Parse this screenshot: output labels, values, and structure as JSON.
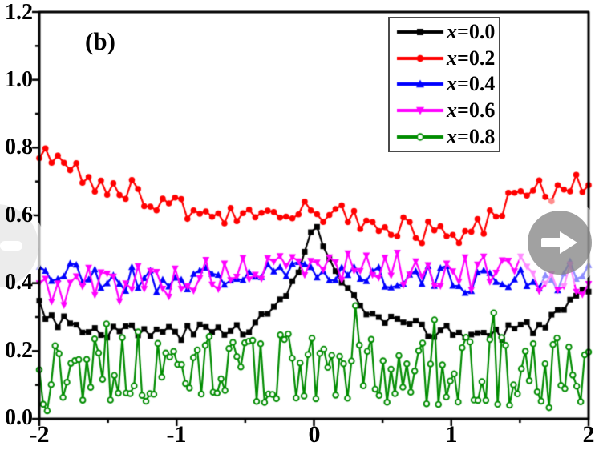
{
  "panel_label": "(b)",
  "ui": {
    "prev_icon": "arrow-left",
    "next_icon": "arrow-right"
  },
  "chart_data": {
    "type": "line",
    "title": "",
    "xlabel": "",
    "ylabel": "",
    "xlim": [
      -2,
      2
    ],
    "ylim": [
      0,
      1.2
    ],
    "xticks": [
      -2,
      -1,
      0,
      1,
      2
    ],
    "xticklabels": [
      "-2",
      "-1",
      "0",
      "1",
      "2"
    ],
    "xminor": [
      -1.5,
      -0.5,
      0.5,
      1.5
    ],
    "yticks": [
      0.0,
      0.2,
      0.4,
      0.6,
      0.8,
      1.0,
      1.2
    ],
    "yticklabels": [
      "0.0",
      "0.2",
      "0.4",
      "0.6",
      "0.8",
      "1.0",
      "1.2"
    ],
    "yminor": [
      0.1,
      0.3,
      0.5,
      0.7,
      0.9,
      1.1
    ],
    "grid": false,
    "frame": true,
    "legend_position": "top-right",
    "panel_label": "(b)",
    "series": [
      {
        "label": "x=0.0",
        "var": "x",
        "eq": "=0.0",
        "color": "#000000",
        "marker": "square",
        "n": 90,
        "seed": 3,
        "noise_center": 0.018,
        "noise_edge": 0.03,
        "spike": 0,
        "spike_prob": 0,
        "clip_min": 0.01,
        "trend": [
          [
            -2,
            0.335
          ],
          [
            -1.85,
            0.29
          ],
          [
            -1.6,
            0.265
          ],
          [
            -1.3,
            0.255
          ],
          [
            -1.0,
            0.255
          ],
          [
            -0.7,
            0.26
          ],
          [
            -0.5,
            0.27
          ],
          [
            -0.35,
            0.3
          ],
          [
            -0.2,
            0.36
          ],
          [
            -0.1,
            0.46
          ],
          [
            0,
            0.575
          ],
          [
            0.08,
            0.5
          ],
          [
            0.2,
            0.4
          ],
          [
            0.35,
            0.32
          ],
          [
            0.5,
            0.285
          ],
          [
            0.8,
            0.265
          ],
          [
            1.1,
            0.25
          ],
          [
            1.4,
            0.25
          ],
          [
            1.7,
            0.29
          ],
          [
            1.9,
            0.33
          ],
          [
            2,
            0.37
          ]
        ]
      },
      {
        "label": "x=0.2",
        "var": "x",
        "eq": "=0.2",
        "color": "#ff0000",
        "marker": "circle",
        "n": 90,
        "seed": 8,
        "noise_center": 0.028,
        "noise_edge": 0.045,
        "spike": 0,
        "spike_prob": 0,
        "clip_min": 0.01,
        "trend": [
          [
            -2,
            0.8
          ],
          [
            -1.85,
            0.755
          ],
          [
            -1.7,
            0.72
          ],
          [
            -1.5,
            0.695
          ],
          [
            -1.3,
            0.665
          ],
          [
            -1.1,
            0.645
          ],
          [
            -0.9,
            0.62
          ],
          [
            -0.7,
            0.605
          ],
          [
            -0.5,
            0.59
          ],
          [
            -0.3,
            0.6
          ],
          [
            -0.15,
            0.615
          ],
          [
            0,
            0.61
          ],
          [
            0.2,
            0.6
          ],
          [
            0.4,
            0.58
          ],
          [
            0.6,
            0.565
          ],
          [
            0.8,
            0.55
          ],
          [
            1.0,
            0.545
          ],
          [
            1.2,
            0.575
          ],
          [
            1.4,
            0.625
          ],
          [
            1.6,
            0.66
          ],
          [
            1.8,
            0.685
          ],
          [
            2,
            0.685
          ]
        ]
      },
      {
        "label": "x=0.4",
        "var": "x",
        "eq": "=0.4",
        "color": "#0000ff",
        "marker": "triangle-up",
        "n": 90,
        "seed": 21,
        "noise_center": 0.03,
        "noise_edge": 0.05,
        "spike": 0,
        "spike_prob": 0,
        "clip_min": 0.01,
        "trend": [
          [
            -2,
            0.455
          ],
          [
            -1.9,
            0.425
          ],
          [
            -1.6,
            0.415
          ],
          [
            -1.2,
            0.41
          ],
          [
            -0.8,
            0.415
          ],
          [
            -0.4,
            0.425
          ],
          [
            0,
            0.44
          ],
          [
            0.4,
            0.425
          ],
          [
            0.8,
            0.415
          ],
          [
            1.2,
            0.41
          ],
          [
            1.6,
            0.415
          ],
          [
            2,
            0.43
          ]
        ]
      },
      {
        "label": "x=0.6",
        "var": "x",
        "eq": "=0.6",
        "color": "#ff00ff",
        "marker": "triangle-down",
        "n": 90,
        "seed": 5,
        "noise_center": 0.04,
        "noise_edge": 0.065,
        "spike": 0,
        "spike_prob": 0,
        "clip_min": 0.01,
        "trend": [
          [
            -2,
            0.375
          ],
          [
            -1.7,
            0.395
          ],
          [
            -1.3,
            0.405
          ],
          [
            -0.9,
            0.415
          ],
          [
            -0.5,
            0.43
          ],
          [
            -0.2,
            0.45
          ],
          [
            0,
            0.455
          ],
          [
            0.3,
            0.45
          ],
          [
            0.7,
            0.44
          ],
          [
            1.1,
            0.43
          ],
          [
            1.5,
            0.425
          ],
          [
            2,
            0.42
          ]
        ]
      },
      {
        "label": "x=0.8",
        "var": "x",
        "eq": "=0.8",
        "color": "#008c00",
        "marker": "circle-open",
        "n": 140,
        "seed": 13,
        "noise_center": 0.105,
        "noise_edge": 0.11,
        "spike": 0.17,
        "spike_prob": 0.09,
        "clip_min": 0.006,
        "trend": [
          [
            -2,
            0.13
          ],
          [
            -1.6,
            0.145
          ],
          [
            -1.2,
            0.15
          ],
          [
            -0.8,
            0.155
          ],
          [
            -0.4,
            0.15
          ],
          [
            0,
            0.135
          ],
          [
            0.4,
            0.14
          ],
          [
            0.8,
            0.145
          ],
          [
            1.2,
            0.14
          ],
          [
            1.6,
            0.135
          ],
          [
            2,
            0.145
          ]
        ]
      }
    ]
  }
}
